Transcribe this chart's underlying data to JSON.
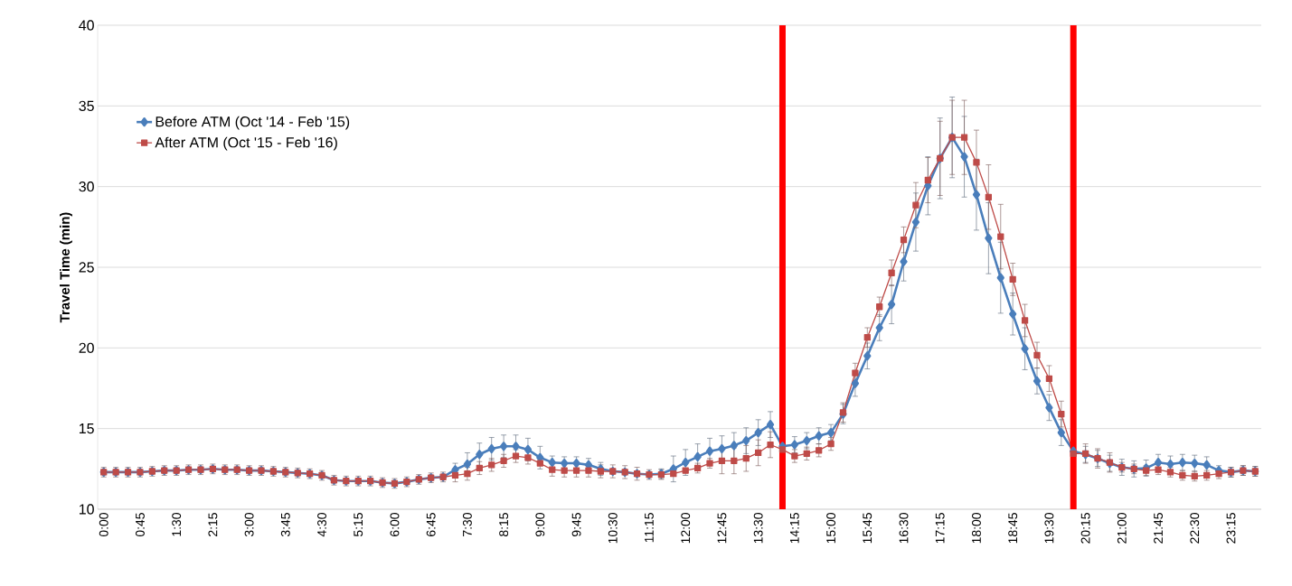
{
  "chart_data": {
    "type": "line",
    "ylabel": "Travel Time (min)",
    "x": [
      0,
      0.25,
      0.5,
      0.75,
      1,
      1.25,
      1.5,
      1.75,
      2,
      2.25,
      2.5,
      2.75,
      3,
      3.25,
      3.5,
      3.75,
      4,
      4.25,
      4.5,
      4.75,
      5,
      5.25,
      5.5,
      5.75,
      6,
      6.25,
      6.5,
      6.75,
      7,
      7.25,
      7.5,
      7.75,
      8,
      8.25,
      8.5,
      8.75,
      9,
      9.25,
      9.5,
      9.75,
      10,
      10.25,
      10.5,
      10.75,
      11,
      11.25,
      11.5,
      11.75,
      12,
      12.25,
      12.5,
      12.75,
      13,
      13.25,
      13.5,
      13.75,
      14,
      14.25,
      14.5,
      14.75,
      15,
      15.25,
      15.5,
      15.75,
      16,
      16.25,
      16.5,
      16.75,
      17,
      17.25,
      17.5,
      17.75,
      18,
      18.25,
      18.5,
      18.75,
      19,
      19.25,
      19.5,
      19.75,
      20,
      20.25,
      20.5,
      20.75,
      21,
      21.25,
      21.5,
      21.75,
      22,
      22.25,
      22.5,
      22.75,
      23,
      23.25,
      23.5,
      23.75
    ],
    "series": [
      {
        "name": "Before ATM (Oct '14 - Feb '15)",
        "color": "#4a7ebb",
        "marker": "diamond",
        "values": [
          12.3,
          12.3,
          12.3,
          12.3,
          12.35,
          12.4,
          12.4,
          12.45,
          12.45,
          12.5,
          12.45,
          12.45,
          12.4,
          12.4,
          12.35,
          12.3,
          12.25,
          12.2,
          12.1,
          11.8,
          11.75,
          11.75,
          11.75,
          11.65,
          11.6,
          11.7,
          11.85,
          11.95,
          12.0,
          12.45,
          12.8,
          13.4,
          13.75,
          13.9,
          13.9,
          13.7,
          13.2,
          12.9,
          12.85,
          12.85,
          12.75,
          12.5,
          12.35,
          12.3,
          12.2,
          12.15,
          12.2,
          12.5,
          12.9,
          13.25,
          13.6,
          13.75,
          13.95,
          14.25,
          14.75,
          15.25,
          13.9,
          14.0,
          14.25,
          14.55,
          14.75,
          15.9,
          17.8,
          19.5,
          21.25,
          22.7,
          25.35,
          27.8,
          30.05,
          31.75,
          33.05,
          31.85,
          29.5,
          26.8,
          24.35,
          22.1,
          19.95,
          17.95,
          16.3,
          14.75,
          13.6,
          13.4,
          13.15,
          12.85,
          12.6,
          12.5,
          12.55,
          12.9,
          12.8,
          12.9,
          12.85,
          12.75,
          12.4,
          12.3,
          12.4,
          12.35
        ],
        "errors": [
          null,
          null,
          null,
          null,
          null,
          null,
          null,
          null,
          null,
          null,
          null,
          null,
          null,
          null,
          null,
          null,
          null,
          null,
          null,
          null,
          null,
          null,
          null,
          null,
          null,
          null,
          null,
          null,
          null,
          0.4,
          0.7,
          0.7,
          0.7,
          0.7,
          0.7,
          0.7,
          0.7,
          0.4,
          0.4,
          0.4,
          0.4,
          0.4,
          null,
          null,
          null,
          null,
          0.3,
          0.8,
          0.8,
          0.8,
          0.8,
          0.8,
          0.8,
          0.8,
          0.8,
          0.8,
          null,
          0.5,
          0.5,
          0.5,
          0.5,
          0.6,
          0.8,
          0.8,
          0.8,
          1.2,
          1.2,
          1.8,
          1.8,
          2.5,
          2.5,
          2.5,
          2.2,
          2.2,
          2.2,
          1.3,
          1.3,
          0.8,
          0.8,
          0.8,
          null,
          0.5,
          0.5,
          0.5,
          0.5,
          0.5,
          0.5,
          0.5,
          0.5,
          0.5,
          0.5,
          0.5,
          0.3,
          0.3,
          0.3,
          0.3
        ]
      },
      {
        "name": "After ATM (Oct '15 - Feb '16)",
        "color": "#be4b48",
        "marker": "square",
        "values": [
          12.3,
          12.3,
          12.3,
          12.3,
          12.35,
          12.4,
          12.4,
          12.45,
          12.45,
          12.5,
          12.45,
          12.45,
          12.4,
          12.4,
          12.35,
          12.3,
          12.25,
          12.2,
          12.1,
          11.8,
          11.75,
          11.75,
          11.75,
          11.65,
          11.6,
          11.7,
          11.85,
          11.95,
          12.0,
          12.1,
          12.2,
          12.55,
          12.75,
          13.0,
          13.3,
          13.2,
          12.85,
          12.45,
          12.4,
          12.4,
          12.4,
          12.35,
          12.35,
          12.3,
          12.2,
          12.15,
          12.15,
          12.2,
          12.4,
          12.55,
          12.85,
          13.0,
          13.0,
          13.15,
          13.5,
          14.0,
          13.7,
          13.3,
          13.45,
          13.65,
          14.05,
          16.0,
          18.45,
          20.65,
          22.55,
          24.65,
          26.7,
          28.85,
          30.4,
          31.75,
          33.05,
          33.05,
          31.5,
          29.35,
          26.9,
          24.25,
          21.7,
          19.55,
          18.1,
          15.9,
          13.45,
          13.45,
          13.15,
          12.9,
          12.6,
          12.5,
          12.4,
          12.45,
          12.3,
          12.1,
          12.05,
          12.1,
          12.2,
          12.3,
          12.4,
          12.35
        ],
        "errors": [
          0.3,
          0.3,
          0.3,
          0.3,
          0.3,
          0.3,
          0.3,
          0.3,
          0.3,
          0.3,
          0.3,
          0.3,
          0.3,
          0.3,
          0.3,
          0.3,
          0.3,
          0.3,
          0.3,
          0.3,
          0.3,
          0.3,
          0.3,
          0.3,
          0.3,
          0.3,
          0.3,
          0.3,
          0.3,
          0.4,
          0.4,
          0.4,
          0.4,
          0.4,
          0.4,
          0.4,
          null,
          0.4,
          0.4,
          0.4,
          0.4,
          0.4,
          0.4,
          0.4,
          0.4,
          0.3,
          0.3,
          null,
          null,
          0.3,
          0.3,
          0.8,
          0.8,
          0.8,
          0.8,
          0.8,
          null,
          0.4,
          0.4,
          0.4,
          0.4,
          0.6,
          0.6,
          0.6,
          0.6,
          0.8,
          0.8,
          1.4,
          1.4,
          2.3,
          2.3,
          2.3,
          2.0,
          2.0,
          2.0,
          1.0,
          1.0,
          0.8,
          0.8,
          0.8,
          null,
          0.6,
          0.6,
          0.6,
          0.3,
          0.3,
          0.3,
          0.3,
          0.3,
          0.3,
          0.3,
          0.3,
          0.3,
          0.3,
          0.3,
          0.3
        ]
      }
    ],
    "xlim": [
      -0.125,
      23.875
    ],
    "ylim": [
      10,
      40
    ],
    "yticks": [
      10,
      15,
      20,
      25,
      30,
      35,
      40
    ],
    "xticks": [
      {
        "value": 0,
        "label": "0:00"
      },
      {
        "value": 0.75,
        "label": "0:45"
      },
      {
        "value": 1.5,
        "label": "1:30"
      },
      {
        "value": 2.25,
        "label": "2:15"
      },
      {
        "value": 3,
        "label": "3:00"
      },
      {
        "value": 3.75,
        "label": "3:45"
      },
      {
        "value": 4.5,
        "label": "4:30"
      },
      {
        "value": 5.25,
        "label": "5:15"
      },
      {
        "value": 6,
        "label": "6:00"
      },
      {
        "value": 6.75,
        "label": "6:45"
      },
      {
        "value": 7.5,
        "label": "7:30"
      },
      {
        "value": 8.25,
        "label": "8:15"
      },
      {
        "value": 9,
        "label": "9:00"
      },
      {
        "value": 9.75,
        "label": "9:45"
      },
      {
        "value": 10.5,
        "label": "10:30"
      },
      {
        "value": 11.25,
        "label": "11:15"
      },
      {
        "value": 12,
        "label": "12:00"
      },
      {
        "value": 12.75,
        "label": "12:45"
      },
      {
        "value": 13.5,
        "label": "13:30"
      },
      {
        "value": 14.25,
        "label": "14:15"
      },
      {
        "value": 15,
        "label": "15:00"
      },
      {
        "value": 15.75,
        "label": "15:45"
      },
      {
        "value": 16.5,
        "label": "16:30"
      },
      {
        "value": 17.25,
        "label": "17:15"
      },
      {
        "value": 18,
        "label": "18:00"
      },
      {
        "value": 18.75,
        "label": "18:45"
      },
      {
        "value": 19.5,
        "label": "19:30"
      },
      {
        "value": 20.25,
        "label": "20:15"
      },
      {
        "value": 21,
        "label": "21:00"
      },
      {
        "value": 21.75,
        "label": "21:45"
      },
      {
        "value": 22.5,
        "label": "22:30"
      },
      {
        "value": 23.25,
        "label": "23:15"
      }
    ],
    "ref_lines": [
      {
        "axis": "x",
        "value": 14,
        "color": "#ff0000"
      },
      {
        "axis": "x",
        "value": 20,
        "color": "#ff0000"
      }
    ],
    "grid": "y",
    "legend": "top left"
  }
}
